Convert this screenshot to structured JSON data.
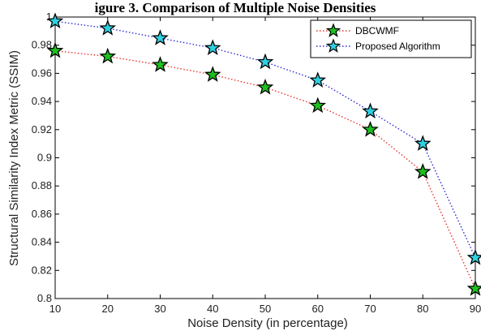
{
  "chart_data": {
    "type": "line",
    "title": "igure 3. Comparison of Multiple Noise Densities",
    "xlabel": "Noise Density (in percentage)",
    "ylabel": "Structural Similarity Index Metric (SSIM)",
    "x": [
      10,
      20,
      30,
      40,
      50,
      60,
      70,
      80,
      90
    ],
    "xlim": [
      10,
      90
    ],
    "ylim": [
      0.8,
      1.0
    ],
    "x_ticks": [
      "10",
      "20",
      "30",
      "40",
      "50",
      "60",
      "70",
      "80",
      "90"
    ],
    "y_ticks": [
      "0.8",
      "0.82",
      "0.84",
      "0.86",
      "0.88",
      "0.9",
      "0.92",
      "0.94",
      "0.96",
      "0.98",
      "1"
    ],
    "grid": false,
    "legend_position": "top-right",
    "series": [
      {
        "name": "DBCWMF",
        "values": [
          0.976,
          0.972,
          0.966,
          0.959,
          0.95,
          0.937,
          0.92,
          0.89,
          0.807
        ],
        "line_color": "#e8332a",
        "marker_color": "#1fbf1f",
        "line_style": "dotted",
        "marker": "star"
      },
      {
        "name": "Proposed Algorithm",
        "values": [
          0.997,
          0.992,
          0.985,
          0.978,
          0.968,
          0.955,
          0.933,
          0.91,
          0.829
        ],
        "line_color": "#2a2ad6",
        "marker_color": "#2fd0e0",
        "line_style": "dotted",
        "marker": "star"
      }
    ]
  }
}
